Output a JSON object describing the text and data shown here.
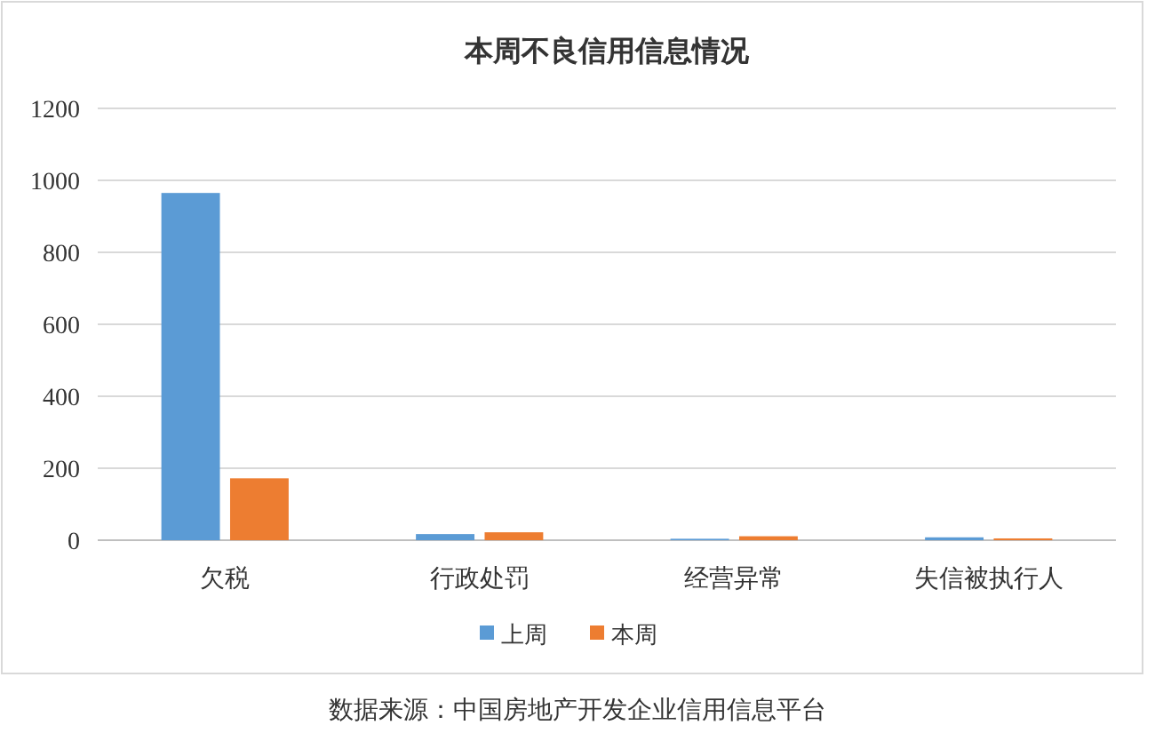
{
  "chart_data": {
    "type": "bar",
    "title": "本周不良信用信息情况",
    "categories": [
      "欠税",
      "行政处罚",
      "经营异常",
      "失信被执行人"
    ],
    "series": [
      {
        "name": "上周",
        "color": "#5b9bd5",
        "values": [
          965,
          17,
          4,
          8
        ]
      },
      {
        "name": "本周",
        "color": "#ed7d31",
        "values": [
          172,
          22,
          11,
          5
        ]
      }
    ],
    "ylim": [
      0,
      1200
    ],
    "yticks": [
      0,
      200,
      400,
      600,
      800,
      1000,
      1200
    ],
    "grid": "y",
    "legend": "bottom",
    "annotations": [
      "数据来源：中国房地产开发企业信用信息平台"
    ]
  }
}
